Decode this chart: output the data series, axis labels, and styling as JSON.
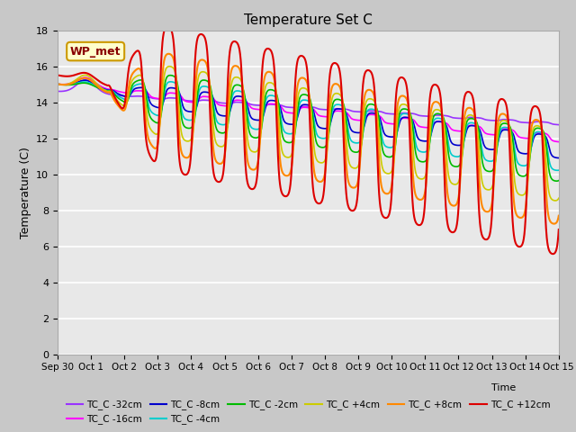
{
  "title": "Temperature Set C",
  "xlabel": "Time",
  "ylabel": "Temperature (C)",
  "ylim": [
    0,
    18
  ],
  "yticks": [
    0,
    2,
    4,
    6,
    8,
    10,
    12,
    14,
    16,
    18
  ],
  "plot_bg": "#e8e8e8",
  "wp_met_label": "WP_met",
  "series_colors": {
    "TC_C -32cm": "#9933ff",
    "TC_C -16cm": "#ff00ff",
    "TC_C -8cm": "#0000cc",
    "TC_C -4cm": "#00cccc",
    "TC_C -2cm": "#00bb00",
    "TC_C +4cm": "#cccc00",
    "TC_C +8cm": "#ff8800",
    "TC_C +12cm": "#dd0000"
  },
  "x_tick_labels": [
    "Sep 30",
    "Oct 1",
    "Oct 2",
    "Oct 3",
    "Oct 4",
    "Oct 5",
    "Oct 6",
    "Oct 7",
    "Oct 8",
    "Oct 9",
    "Oct 10",
    "Oct 11",
    "Oct 12",
    "Oct 13",
    "Oct 14",
    "Oct 15"
  ],
  "n_days": 15
}
